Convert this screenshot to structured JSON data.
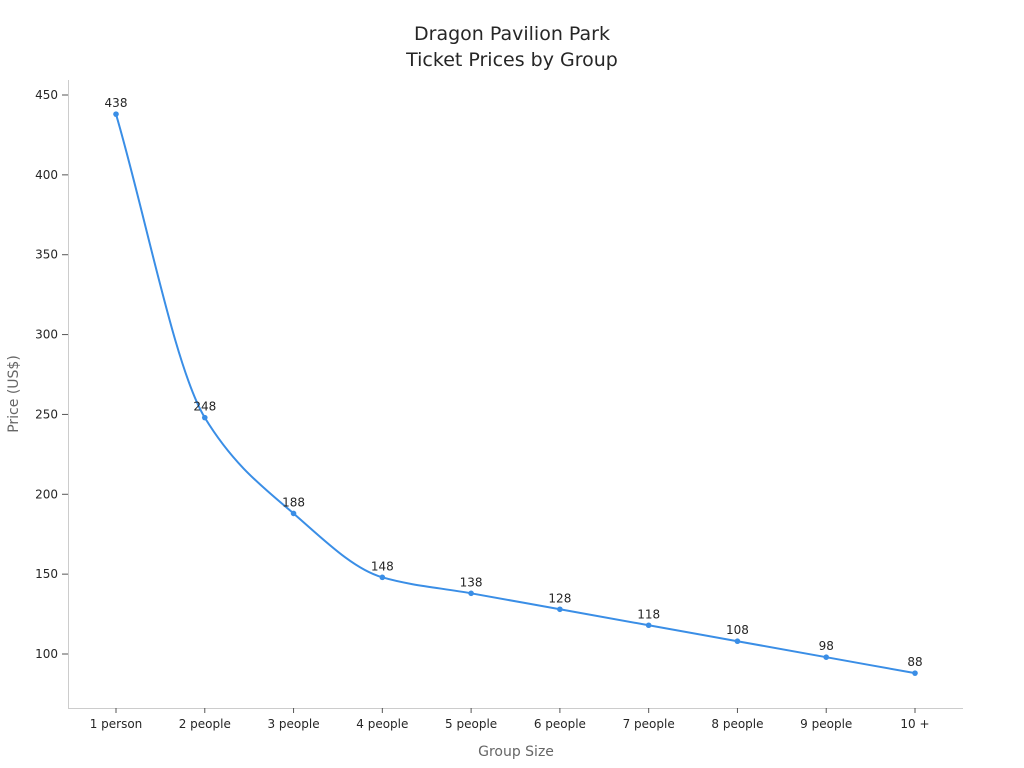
{
  "chart_data": {
    "type": "line",
    "title": [
      "Dragon Pavilion Park",
      "Ticket Prices by Group"
    ],
    "xlabel": "Group Size",
    "ylabel": "Price (US$)",
    "categories": [
      "1 person",
      "2 people",
      "3 people",
      "4 people",
      "5 people",
      "6 people",
      "7 people",
      "8 people",
      "9 people",
      "10 +"
    ],
    "values": [
      438,
      248,
      188,
      148,
      138,
      128,
      118,
      108,
      98,
      88
    ],
    "yticks": [
      100,
      150,
      200,
      250,
      300,
      350,
      400,
      450
    ],
    "ylim": [
      66,
      459
    ],
    "grid": false,
    "smooth": true,
    "data_labels": true,
    "line_color": "#3a8ee6"
  }
}
